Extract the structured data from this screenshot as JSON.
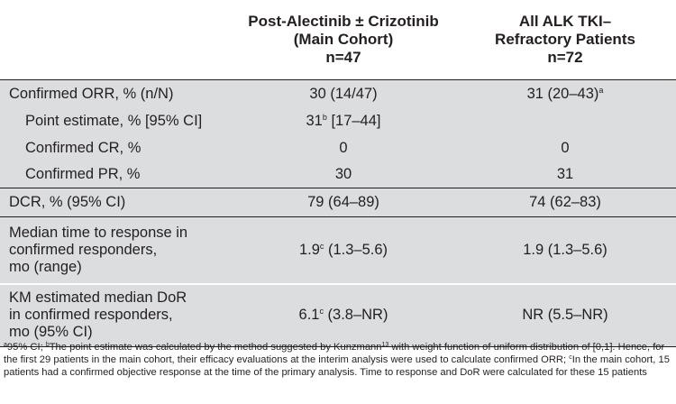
{
  "table": {
    "columns": [
      {
        "label": "",
        "lines": []
      },
      {
        "label": "Post-Alectinib ± Crizotinib (Main Cohort) n=47",
        "lines": [
          "Post-Alectinib ± Crizotinib",
          "(Main Cohort)",
          "n=47"
        ]
      },
      {
        "label": "All ALK TKI–Refractory Patients n=72",
        "lines": [
          "All ALK TKI–",
          "Refractory Patients",
          "n=72"
        ]
      }
    ],
    "rows": [
      {
        "label": "Confirmed ORR, % (n/N)",
        "main": "30 (14/47)",
        "all_main": "31 (20–43)",
        "all_sup": "a"
      },
      {
        "label": "Point estimate, % [95% CI]",
        "main_main": "31",
        "main_sup": "b",
        "main_rest": " [17–44]",
        "all": ""
      },
      {
        "label": "Confirmed CR, %",
        "main": "0",
        "all": "0"
      },
      {
        "label": "Confirmed PR, %",
        "main": "30",
        "all": "31"
      },
      {
        "label": "DCR, % (95% CI)",
        "main": "79 (64–89)",
        "all": "74 (62–83)"
      },
      {
        "label_lines": [
          "Median time to response in",
          "confirmed responders,",
          "mo (range)"
        ],
        "main_main": "1.9",
        "main_sup": "c",
        "main_rest": " (1.3–5.6)",
        "all": "1.9 (1.3–5.6)"
      },
      {
        "label_lines": [
          "KM estimated median DoR",
          "in confirmed responders,",
          "mo (95% CI)"
        ],
        "main_main": "6.1",
        "main_sup": "c",
        "main_rest": " (3.8–NR)",
        "all": "NR (5.5–NR)"
      }
    ]
  },
  "footnote": {
    "a_sup": "a",
    "a_text": "95% CI; ",
    "b_sup": "b",
    "b_text": "The point estimate was calculated by the method suggested by Kunzmann",
    "ref_sup": "13",
    "b_text2": " with weight function of uniform distribution of [0,1]. Hence, for the first 29 patients in the main cohort, their efficacy evaluations at the interim analysis were used to calculate confirmed ORR; ",
    "c_sup": "c",
    "c_text": "In the main cohort, 15 patients had a confirmed objective response at the time of the primary analysis. Time to response and DoR were calculated for these 15 patients"
  }
}
